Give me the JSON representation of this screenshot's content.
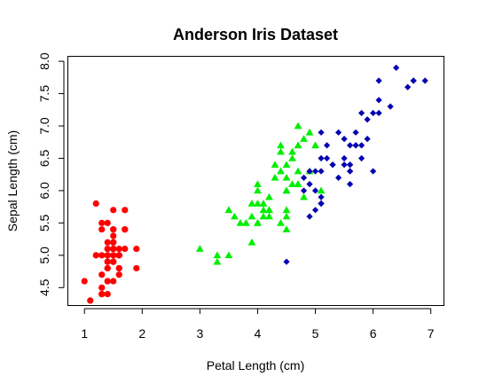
{
  "chart_data": {
    "type": "scatter",
    "title": "Anderson Iris Dataset",
    "xlabel": "Petal Length (cm)",
    "ylabel": "Sepal Length (cm)",
    "xlim": [
      0.72,
      7.22
    ],
    "ylim": [
      4.23,
      8.07
    ],
    "xticks": [
      "1",
      "2",
      "3",
      "4",
      "5",
      "6",
      "7"
    ],
    "yticks": [
      "4.5",
      "5.0",
      "5.5",
      "6.0",
      "6.5",
      "7.0",
      "7.5",
      "8.0"
    ],
    "grid": false,
    "legend": "none",
    "series": [
      {
        "color": "#ff0000",
        "marker": "circle",
        "points": [
          [
            1.4,
            5.1
          ],
          [
            1.4,
            4.9
          ],
          [
            1.3,
            4.7
          ],
          [
            1.5,
            4.6
          ],
          [
            1.4,
            5.0
          ],
          [
            1.7,
            5.4
          ],
          [
            1.4,
            4.6
          ],
          [
            1.5,
            5.0
          ],
          [
            1.4,
            4.4
          ],
          [
            1.5,
            4.9
          ],
          [
            1.5,
            5.4
          ],
          [
            1.6,
            4.8
          ],
          [
            1.4,
            4.8
          ],
          [
            1.1,
            4.3
          ],
          [
            1.2,
            5.8
          ],
          [
            1.5,
            5.7
          ],
          [
            1.3,
            5.4
          ],
          [
            1.4,
            5.1
          ],
          [
            1.7,
            5.7
          ],
          [
            1.5,
            5.1
          ],
          [
            1.7,
            5.4
          ],
          [
            1.5,
            5.1
          ],
          [
            1.0,
            4.6
          ],
          [
            1.7,
            5.1
          ],
          [
            1.9,
            4.8
          ],
          [
            1.6,
            5.0
          ],
          [
            1.6,
            5.0
          ],
          [
            1.5,
            5.2
          ],
          [
            1.4,
            5.2
          ],
          [
            1.6,
            4.7
          ],
          [
            1.6,
            4.8
          ],
          [
            1.5,
            5.4
          ],
          [
            1.5,
            5.2
          ],
          [
            1.4,
            5.5
          ],
          [
            1.5,
            4.9
          ],
          [
            1.2,
            5.0
          ],
          [
            1.3,
            5.5
          ],
          [
            1.4,
            4.9
          ],
          [
            1.3,
            4.4
          ],
          [
            1.5,
            5.1
          ],
          [
            1.3,
            5.0
          ],
          [
            1.3,
            4.5
          ],
          [
            1.3,
            4.4
          ],
          [
            1.6,
            5.0
          ],
          [
            1.9,
            5.1
          ],
          [
            1.4,
            4.8
          ],
          [
            1.6,
            5.1
          ],
          [
            1.4,
            4.6
          ],
          [
            1.5,
            5.3
          ],
          [
            1.4,
            5.0
          ]
        ]
      },
      {
        "color": "#00ee00",
        "marker": "triangle",
        "points": [
          [
            4.7,
            7.0
          ],
          [
            4.5,
            6.4
          ],
          [
            4.9,
            6.9
          ],
          [
            4.0,
            5.5
          ],
          [
            4.6,
            6.5
          ],
          [
            4.5,
            5.7
          ],
          [
            4.7,
            6.3
          ],
          [
            3.3,
            4.9
          ],
          [
            4.6,
            6.6
          ],
          [
            3.9,
            5.2
          ],
          [
            3.5,
            5.0
          ],
          [
            4.2,
            5.9
          ],
          [
            4.0,
            6.0
          ],
          [
            4.7,
            6.1
          ],
          [
            3.6,
            5.6
          ],
          [
            4.4,
            6.7
          ],
          [
            4.5,
            5.6
          ],
          [
            4.1,
            5.8
          ],
          [
            4.5,
            6.2
          ],
          [
            3.9,
            5.6
          ],
          [
            4.8,
            5.9
          ],
          [
            4.0,
            6.1
          ],
          [
            4.9,
            6.3
          ],
          [
            4.7,
            6.1
          ],
          [
            4.3,
            6.4
          ],
          [
            4.4,
            6.6
          ],
          [
            4.8,
            6.8
          ],
          [
            5.0,
            6.7
          ],
          [
            4.5,
            6.0
          ],
          [
            3.5,
            5.7
          ],
          [
            3.8,
            5.5
          ],
          [
            3.7,
            5.5
          ],
          [
            3.9,
            5.8
          ],
          [
            5.1,
            6.0
          ],
          [
            4.5,
            5.4
          ],
          [
            4.5,
            6.0
          ],
          [
            4.7,
            6.7
          ],
          [
            4.4,
            6.3
          ],
          [
            4.1,
            5.6
          ],
          [
            4.0,
            5.5
          ],
          [
            4.4,
            5.5
          ],
          [
            4.6,
            6.1
          ],
          [
            4.0,
            5.8
          ],
          [
            3.3,
            5.0
          ],
          [
            4.2,
            5.6
          ],
          [
            4.2,
            5.7
          ],
          [
            4.2,
            5.7
          ],
          [
            4.3,
            6.2
          ],
          [
            3.0,
            5.1
          ],
          [
            4.1,
            5.7
          ]
        ]
      },
      {
        "color": "#0000b0",
        "marker": "diamond",
        "points": [
          [
            6.0,
            6.3
          ],
          [
            5.1,
            5.8
          ],
          [
            5.9,
            7.1
          ],
          [
            5.6,
            6.3
          ],
          [
            5.8,
            6.5
          ],
          [
            6.6,
            7.6
          ],
          [
            4.5,
            4.9
          ],
          [
            6.3,
            7.3
          ],
          [
            5.8,
            6.7
          ],
          [
            6.1,
            7.2
          ],
          [
            5.1,
            6.5
          ],
          [
            5.3,
            6.4
          ],
          [
            5.5,
            6.8
          ],
          [
            5.0,
            5.7
          ],
          [
            5.1,
            5.8
          ],
          [
            5.3,
            6.4
          ],
          [
            5.5,
            6.5
          ],
          [
            6.7,
            7.7
          ],
          [
            6.9,
            7.7
          ],
          [
            5.0,
            6.0
          ],
          [
            5.7,
            6.9
          ],
          [
            4.9,
            5.6
          ],
          [
            6.7,
            7.7
          ],
          [
            4.9,
            6.3
          ],
          [
            5.7,
            6.7
          ],
          [
            6.0,
            7.2
          ],
          [
            4.8,
            6.2
          ],
          [
            4.9,
            6.1
          ],
          [
            5.6,
            6.4
          ],
          [
            5.8,
            7.2
          ],
          [
            6.1,
            7.4
          ],
          [
            6.4,
            7.9
          ],
          [
            5.6,
            6.4
          ],
          [
            5.1,
            6.3
          ],
          [
            5.6,
            6.1
          ],
          [
            6.1,
            7.7
          ],
          [
            5.6,
            6.3
          ],
          [
            5.5,
            6.4
          ],
          [
            4.8,
            6.0
          ],
          [
            5.4,
            6.9
          ],
          [
            5.6,
            6.7
          ],
          [
            5.1,
            6.9
          ],
          [
            5.1,
            5.8
          ],
          [
            5.9,
            6.8
          ],
          [
            5.7,
            6.7
          ],
          [
            5.2,
            6.7
          ],
          [
            5.0,
            6.3
          ],
          [
            5.2,
            6.5
          ],
          [
            5.4,
            6.2
          ],
          [
            5.1,
            5.9
          ]
        ]
      }
    ]
  }
}
